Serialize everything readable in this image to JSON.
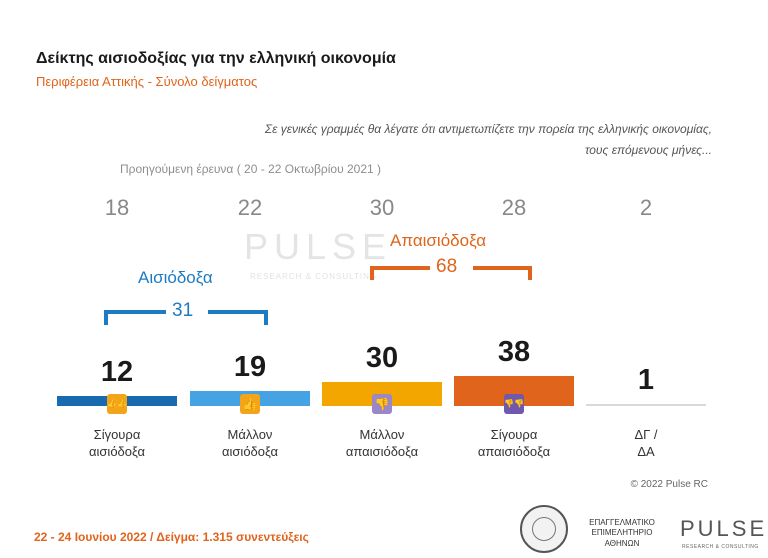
{
  "header": {
    "title": "Δείκτης αισιοδοξίας για την ελληνική οικονομία",
    "subtitle": "Περιφέρεια Αττικής - Σύνολο δείγματος"
  },
  "question": {
    "line1": "Σε γενικές γραμμές θα λέγατε ότι αντιμετωπίζετε την πορεία  της ελληνικής οικονομίας,",
    "line2": "τους επόμενους μήνες..."
  },
  "previous": {
    "label": "Προηγούμενη έρευνα  ( 20 - 22 Οκτωβρίου 2021 )"
  },
  "groups": {
    "optimistic": {
      "label": "Αισιόδοξα",
      "total": "31"
    },
    "pessimistic": {
      "label": "Απαισιόδοξα",
      "total": "68"
    }
  },
  "chart_data": {
    "type": "bar",
    "categories": [
      "Σίγουρα αισιόδοξα",
      "Μάλλον αισιόδοξα",
      "Μάλλον απαισιόδοξα",
      "Σίγουρα απαισιόδοξα",
      "ΔΓ / ΔΑ"
    ],
    "category_lines": [
      [
        "Σίγουρα",
        "αισιόδοξα"
      ],
      [
        "Μάλλον",
        "αισιόδοξα"
      ],
      [
        "Μάλλον",
        "απαισιόδοξα"
      ],
      [
        "Σίγουρα",
        "απαισιόδοξα"
      ],
      [
        "ΔΓ /",
        "ΔΑ"
      ]
    ],
    "values": [
      12,
      19,
      30,
      38,
      1
    ],
    "previous_values": [
      18,
      22,
      30,
      28,
      2
    ],
    "colors": [
      "#1a6ab0",
      "#46a3e3",
      "#f3a500",
      "#e0641b",
      "#d9d9d9"
    ],
    "icons": [
      "thumbs-up-double-icon",
      "thumbs-up-icon",
      "thumbs-down-icon",
      "thumbs-down-double-icon",
      ""
    ],
    "icon_colors": [
      "#f4a418",
      "#f4a418",
      "#9b86c9",
      "#6f58ad",
      ""
    ]
  },
  "watermark": {
    "text": "PULSE",
    "sub": "RESEARCH & CONSULTING"
  },
  "footer": {
    "fieldwork": "22 - 24  Ιουνίου  2022  /  Δείγμα:  1.315 συνεντεύξεις",
    "copyright": "© 2022 Pulse RC",
    "chamber": [
      "ΕΠΑΓΓΕΛΜΑΤΙΚΟ",
      "ΕΠΙΜΕΛΗΤΗΡΙΟ",
      "ΑΘΗΝΩΝ"
    ],
    "logo": "PULSE",
    "logo_tag": "RESEARCH & CONSULTING"
  }
}
